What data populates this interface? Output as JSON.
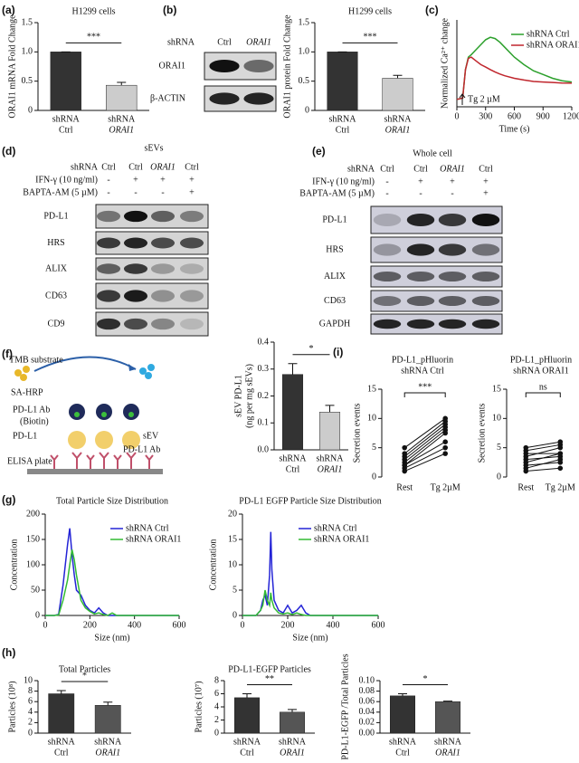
{
  "panel_labels": [
    "(a)",
    "(b)",
    "(c)",
    "(d)",
    "(e)",
    "(f)",
    "(g)",
    "(h)",
    "(i)"
  ],
  "blots": {
    "b": {
      "header_labels": [
        "shRNA"
      ],
      "lanes": [
        [
          "Ctrl"
        ],
        [
          "ORAI1"
        ]
      ],
      "rows": [
        "ORAI1",
        "β-ACTIN"
      ]
    },
    "d": {
      "title": "sEVs",
      "header_labels": [
        "shRNA",
        "IFN-γ (10 ng/ml)",
        "BAPTA-AM (5 µM)"
      ],
      "lanes": [
        [
          "Ctrl",
          "-",
          "-"
        ],
        [
          "Ctrl",
          "+",
          "-"
        ],
        [
          "ORAI1",
          "+",
          "-"
        ],
        [
          "Ctrl",
          "+",
          "+"
        ]
      ],
      "rows": [
        "PD-L1",
        "HRS",
        "ALIX",
        "CD63",
        "CD9"
      ]
    },
    "e": {
      "title": "Whole cell",
      "header_labels": [
        "shRNA",
        "IFN-γ (10 ng/ml)",
        "BAPTA-AM (5 µM)"
      ],
      "lanes": [
        [
          "Ctrl",
          "-",
          "-"
        ],
        [
          "Ctrl",
          "+",
          "-"
        ],
        [
          "ORAI1",
          "+",
          "-"
        ],
        [
          "Ctrl",
          "+",
          "+"
        ]
      ],
      "rows": [
        "PD-L1",
        "HRS",
        "ALIX",
        "CD63",
        "GAPDH"
      ]
    }
  },
  "elisa": {
    "labels": [
      "TMB substrate",
      "SA-HRP",
      "PD-L1 Ab",
      "(Biotin)",
      "PD-L1",
      "sEV",
      "PD-L1 Ab",
      "ELISA plate"
    ]
  },
  "chart_data": [
    {
      "type": "bar",
      "title": "H1299 cells",
      "ylabel": "ORAI1 mRNA Fold Change",
      "categories": [
        [
          "shRNA",
          "Ctrl"
        ],
        [
          "shRNA",
          "ORAI1"
        ]
      ],
      "values": [
        1.0,
        0.43
      ],
      "errors": [
        0,
        0.05
      ],
      "colors": [
        "#333333",
        "#cccccc"
      ],
      "ylim": [
        0,
        1.5
      ],
      "yticks": [
        0,
        0.5,
        {
          "value": 1,
          "label": "1.0"
        },
        1.5
      ],
      "annotation": "***"
    },
    {
      "type": "bar",
      "title": "H1299 cells",
      "ylabel": "ORAI1 protein Fold Change",
      "categories": [
        [
          "shRNA",
          "Ctrl"
        ],
        [
          "shRNA",
          "ORAI1"
        ]
      ],
      "values": [
        1.0,
        0.55
      ],
      "errors": [
        0,
        0.05
      ],
      "colors": [
        "#333333",
        "#cccccc"
      ],
      "ylim": [
        0,
        1.5
      ],
      "yticks": [
        0,
        0.5,
        {
          "value": 1,
          "label": "1.0"
        },
        1.5
      ],
      "annotation": "***"
    },
    {
      "type": "line",
      "ylabel": "Normalized Ca²⁺ change",
      "xlabel": "Time (s)",
      "annotation": "Tg 2 µM",
      "x": [
        0,
        60,
        90,
        120,
        150,
        200,
        250,
        300,
        350,
        400,
        450,
        500,
        600,
        700,
        800,
        900,
        1000,
        1100,
        1200
      ],
      "xlim": [
        0,
        1200
      ],
      "xticks": [
        0,
        300,
        600,
        900,
        1200
      ],
      "ylim": [
        0,
        3.5
      ],
      "series": [
        {
          "name": "shRNA Ctrl",
          "color": "#2ca02c",
          "values": [
            0.3,
            0.35,
            1.5,
            2.0,
            2.1,
            2.3,
            2.5,
            2.7,
            2.8,
            2.75,
            2.6,
            2.4,
            2.0,
            1.7,
            1.45,
            1.3,
            1.15,
            1.05,
            1.0
          ]
        },
        {
          "name": "shRNA ORAI1",
          "color": "#c0262d",
          "values": [
            0.3,
            0.35,
            1.5,
            1.95,
            2.0,
            1.85,
            1.7,
            1.6,
            1.5,
            1.4,
            1.32,
            1.25,
            1.15,
            1.08,
            1.02,
            1.0,
            0.98,
            0.96,
            0.95
          ]
        }
      ]
    },
    {
      "type": "bar",
      "ylabel": [
        "sEV PD-L1",
        "(ng per mg sEVs)"
      ],
      "categories": [
        [
          "shRNA",
          "Ctrl"
        ],
        [
          "shRNA",
          "ORAI1"
        ]
      ],
      "values": [
        0.28,
        0.14
      ],
      "errors": [
        0.04,
        0.025
      ],
      "colors": [
        "#333333",
        "#cccccc"
      ],
      "ylim": [
        0,
        0.4
      ],
      "yticks": [
        {
          "value": 0,
          "label": "0.0"
        },
        0.1,
        0.2,
        0.3,
        0.4
      ],
      "annotation": "*"
    },
    {
      "type": "line",
      "title": "Total Particle Size Distribution",
      "xlabel": "Size (nm)",
      "ylabel": "Concentration",
      "x": [
        0,
        40,
        60,
        80,
        100,
        110,
        120,
        130,
        140,
        160,
        180,
        200,
        220,
        240,
        260,
        280,
        300,
        320,
        400,
        500,
        600
      ],
      "xlim": [
        0,
        600
      ],
      "xticks": [
        0,
        200,
        400,
        600
      ],
      "ylim": [
        0,
        200
      ],
      "yticks": [
        0,
        50,
        100,
        150,
        200
      ],
      "series": [
        {
          "name": "shRNA Ctrl",
          "color": "#2323d6",
          "values": [
            0,
            0,
            2,
            60,
            140,
            172,
            120,
            80,
            50,
            40,
            20,
            10,
            5,
            15,
            5,
            0,
            0,
            0,
            0,
            0,
            0
          ]
        },
        {
          "name": "shRNA ORAI1",
          "color": "#33bb33",
          "values": [
            0,
            0,
            1,
            30,
            70,
            100,
            130,
            110,
            80,
            30,
            15,
            8,
            3,
            5,
            2,
            0,
            5,
            0,
            0,
            0,
            0
          ]
        }
      ]
    },
    {
      "type": "line",
      "title": "PD-L1 EGFP Particle Size Distribution",
      "xlabel": "Size (nm)",
      "ylabel": "Concentration",
      "x": [
        0,
        60,
        80,
        90,
        100,
        110,
        120,
        125,
        130,
        140,
        160,
        180,
        200,
        220,
        240,
        260,
        280,
        300,
        400,
        500,
        600
      ],
      "xlim": [
        0,
        600
      ],
      "xticks": [
        0,
        200,
        400,
        600
      ],
      "ylim": [
        0,
        20
      ],
      "yticks": [
        0,
        5,
        10,
        15,
        20
      ],
      "series": [
        {
          "name": "shRNA Ctrl",
          "color": "#2323d6",
          "values": [
            0,
            0,
            1,
            3,
            4,
            2,
            8,
            16.5,
            9,
            3,
            1,
            0.5,
            2,
            0.5,
            1,
            2,
            0.5,
            0,
            0,
            0,
            0
          ]
        },
        {
          "name": "shRNA ORAI1",
          "color": "#33bb33",
          "values": [
            0,
            0,
            1,
            2,
            5,
            3,
            2,
            4.5,
            3,
            1.5,
            0.5,
            0.3,
            0.5,
            0.2,
            0.5,
            0.2,
            0,
            0,
            0,
            0,
            0
          ]
        }
      ]
    },
    {
      "type": "bar",
      "title": "Total Particles",
      "ylabel": "Particles (10⁸)",
      "categories": [
        [
          "shRNA",
          "Ctrl"
        ],
        [
          "shRNA",
          "ORAI1"
        ]
      ],
      "values": [
        7.5,
        5.3
      ],
      "errors": [
        0.6,
        0.6
      ],
      "colors": [
        "#333333",
        "#555555"
      ],
      "ylim": [
        0,
        10
      ],
      "yticks": [
        0,
        2,
        4,
        6,
        8,
        10
      ],
      "annotation": "*"
    },
    {
      "type": "bar",
      "title": "PD-L1-EGFP Particles",
      "ylabel": "Particles (10⁷)",
      "categories": [
        [
          "shRNA",
          "Ctrl"
        ],
        [
          "shRNA",
          "ORAI1"
        ]
      ],
      "values": [
        5.4,
        3.2
      ],
      "errors": [
        0.6,
        0.4
      ],
      "colors": [
        "#333333",
        "#555555"
      ],
      "ylim": [
        0,
        8
      ],
      "yticks": [
        0,
        2,
        4,
        6,
        8
      ],
      "annotation": "**"
    },
    {
      "type": "bar",
      "ylabel": "PD-L1-EGFP /Total Particles",
      "categories": [
        [
          "shRNA",
          "Ctrl"
        ],
        [
          "shRNA",
          "ORAI1"
        ]
      ],
      "values": [
        0.071,
        0.06
      ],
      "errors": [
        0.004,
        0.001
      ],
      "colors": [
        "#333333",
        "#555555"
      ],
      "ylim": [
        0,
        0.1
      ],
      "yticks": [
        {
          "value": 0,
          "label": "0.00"
        },
        {
          "value": 0.02,
          "label": "0.02"
        },
        {
          "value": 0.04,
          "label": "0.04"
        },
        {
          "value": 0.06,
          "label": "0.06"
        },
        {
          "value": 0.08,
          "label": "0.08"
        },
        {
          "value": 0.1,
          "label": "0.10"
        }
      ],
      "annotation": "*"
    },
    {
      "type": "paired",
      "title": [
        "PD-L1_pHluorin",
        "shRNA Ctrl"
      ],
      "ylabel": "Secretion events",
      "categories": [
        "Rest",
        "Tg 2µM"
      ],
      "ylim": [
        0,
        15
      ],
      "yticks": [
        0,
        5,
        10,
        15
      ],
      "pairs": [
        [
          1,
          4
        ],
        [
          1.5,
          5
        ],
        [
          2,
          6
        ],
        [
          2,
          7.5
        ],
        [
          2.5,
          8
        ],
        [
          3,
          8.5
        ],
        [
          3.5,
          9
        ],
        [
          4,
          9.5
        ],
        [
          5,
          10
        ]
      ],
      "annotation": "***"
    },
    {
      "type": "paired",
      "title": [
        "PD-L1_pHluorin",
        "shRNA ORAI1"
      ],
      "ylabel": "Secretion events",
      "categories": [
        "Rest",
        "Tg 2µM"
      ],
      "ylim": [
        0,
        15
      ],
      "yticks": [
        0,
        5,
        10,
        15
      ],
      "pairs": [
        [
          1,
          1.5
        ],
        [
          1.5,
          3
        ],
        [
          2,
          2.5
        ],
        [
          2.5,
          4
        ],
        [
          3,
          3.5
        ],
        [
          3.5,
          5
        ],
        [
          4,
          4
        ],
        [
          4.5,
          5.5
        ],
        [
          5,
          6
        ]
      ],
      "annotation": "ns"
    }
  ]
}
